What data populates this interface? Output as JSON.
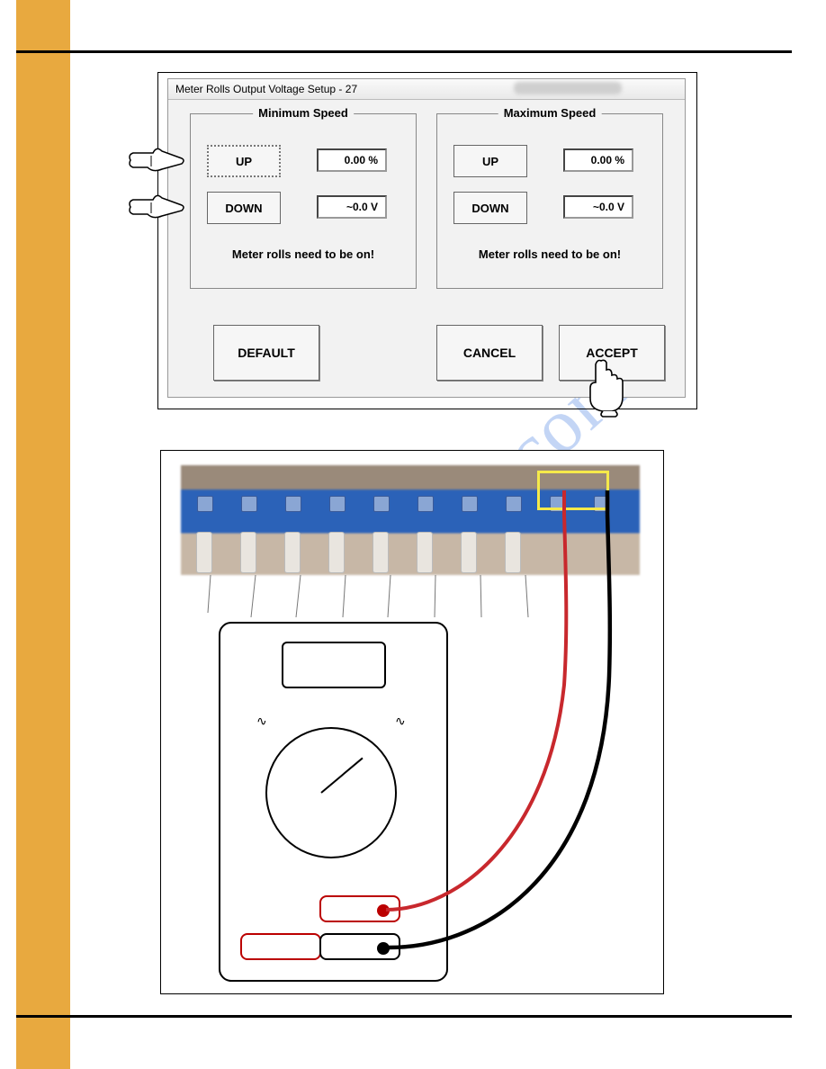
{
  "colors": {
    "gold": "#e8a93f",
    "watermark": "rgba(84,136,225,0.35)",
    "red_lead": "#c8282d",
    "black_lead": "#000000",
    "highlight": "#f5e94a",
    "terminal_blue": "#2b62b8"
  },
  "watermark": "manualslive.com",
  "dialog": {
    "title": "Meter Rolls Output Voltage Setup - 27",
    "groups": {
      "min": {
        "legend": "Minimum Speed",
        "up": "UP",
        "down": "DOWN",
        "percent": "0.00 %",
        "voltage": "~0.0 V",
        "warning": "Meter rolls need to be on!"
      },
      "max": {
        "legend": "Maximum Speed",
        "up": "UP",
        "down": "DOWN",
        "percent": "0.00 %",
        "voltage": "~0.0 V",
        "warning": "Meter rolls need to be on!"
      }
    },
    "buttons": {
      "default": "DEFAULT",
      "cancel": "CANCEL",
      "accept": "ACCEPT"
    }
  },
  "figure2": {
    "terminal_count": 10,
    "highlight_terminals": [
      8,
      9
    ],
    "multimeter": {
      "wave_symbol": "∿",
      "red_lead_from": "port_red_top",
      "black_lead_from": "port_black",
      "red_lead_to_terminal": 8,
      "black_lead_to_terminal": 9
    }
  }
}
